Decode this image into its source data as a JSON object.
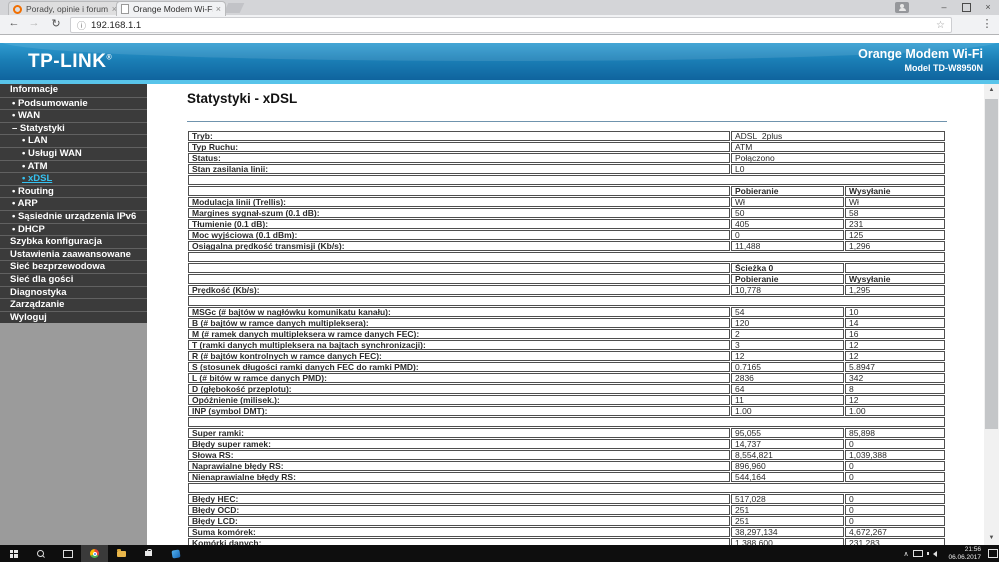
{
  "browser": {
    "tabs": [
      {
        "title": "Porady, opinie i forum -",
        "active": false
      },
      {
        "title": "Orange Modem Wi-Fi",
        "active": true
      }
    ],
    "address": "192.168.1.1",
    "icons": {
      "back": "←",
      "forward": "→",
      "reload": "↻",
      "info": "ⓘ",
      "star": "☆",
      "menu": "⋮",
      "close": "×",
      "minimize": "–",
      "scroll_up": "▲",
      "scroll_down": "▼",
      "tray_chevron": "∧"
    }
  },
  "router": {
    "brand": "TP-LINK",
    "brand_reg": "®",
    "product": "Orange Modem Wi-Fi",
    "model": "Model TD-W8950N"
  },
  "sidebar": {
    "items": [
      {
        "label": "Informacje",
        "kind": "section"
      },
      {
        "label": "Podsumowanie",
        "kind": "link",
        "prefix": "•",
        "indent": 1
      },
      {
        "label": "WAN",
        "kind": "link",
        "prefix": "•",
        "indent": 1
      },
      {
        "label": "Statystyki",
        "kind": "link",
        "prefix": "–",
        "indent": 1
      },
      {
        "label": "LAN",
        "kind": "link",
        "prefix": "•",
        "indent": 2
      },
      {
        "label": "Usługi WAN",
        "kind": "link",
        "prefix": "•",
        "indent": 2
      },
      {
        "label": "ATM",
        "kind": "link",
        "prefix": "•",
        "indent": 2
      },
      {
        "label": "xDSL",
        "kind": "link",
        "prefix": "•",
        "indent": 2,
        "active": true
      },
      {
        "label": "Routing",
        "kind": "link",
        "prefix": "•",
        "indent": 1
      },
      {
        "label": "ARP",
        "kind": "link",
        "prefix": "•",
        "indent": 1
      },
      {
        "label": "Sąsiednie urządzenia IPv6",
        "kind": "link",
        "prefix": "•",
        "indent": 1
      },
      {
        "label": "DHCP",
        "kind": "link",
        "prefix": "•",
        "indent": 1
      },
      {
        "label": "Szybka konfiguracja",
        "kind": "section"
      },
      {
        "label": "Ustawienia zaawansowane",
        "kind": "section"
      },
      {
        "label": "Sieć bezprzewodowa",
        "kind": "section"
      },
      {
        "label": "Sieć dla gości",
        "kind": "section"
      },
      {
        "label": "Diagnostyka",
        "kind": "section"
      },
      {
        "label": "Zarządzanie",
        "kind": "section"
      },
      {
        "label": "Wyloguj",
        "kind": "section"
      }
    ]
  },
  "content": {
    "title": "Statystyki - xDSL"
  },
  "stats_table": {
    "rows": [
      {
        "t": "kv",
        "label": "Tryb:",
        "value": "ADSL_2plus"
      },
      {
        "t": "kv",
        "label": "Typ Ruchu:",
        "value": "ATM"
      },
      {
        "t": "kv",
        "label": "Status:",
        "value": "Połączono"
      },
      {
        "t": "kv",
        "label": "Stan zasilania linii:",
        "value": "L0"
      },
      {
        "t": "gap"
      },
      {
        "t": "head",
        "c1": "Pobieranie",
        "c2": "Wysyłanie"
      },
      {
        "t": "row",
        "label": "Modulacja linii (Trellis):",
        "c1": "Wł",
        "c2": "Wł"
      },
      {
        "t": "row",
        "label": "Margines sygnał-szum (0.1 dB):",
        "c1": "50",
        "c2": "58"
      },
      {
        "t": "row",
        "label": "Tłumienie (0.1 dB):",
        "c1": "405",
        "c2": "231"
      },
      {
        "t": "row",
        "label": "Moc wyjściowa (0.1 dBm):",
        "c1": "0",
        "c2": "125"
      },
      {
        "t": "row",
        "label": "Osiągalna prędkość transmisji (Kb/s):",
        "c1": "11,488",
        "c2": "1,296"
      },
      {
        "t": "gap"
      },
      {
        "t": "head1",
        "c1": "Ścieżka 0"
      },
      {
        "t": "head",
        "c1": "Pobieranie",
        "c2": "Wysyłanie"
      },
      {
        "t": "row",
        "label": "Prędkość (Kb/s):",
        "c1": "10,778",
        "c2": "1,295"
      },
      {
        "t": "gap"
      },
      {
        "t": "row",
        "label": "MSGc (# bajtów w nagłówku komunikatu kanału):",
        "c1": "54",
        "c2": "10"
      },
      {
        "t": "row",
        "label": "B (# bajtów w ramce danych multipleksera):",
        "c1": "120",
        "c2": "14"
      },
      {
        "t": "row",
        "label": "M (# ramek danych multipleksera w ramce danych FEC):",
        "c1": "2",
        "c2": "16"
      },
      {
        "t": "row",
        "label": "T (ramki danych multipleksera na bajtach synchronizacji):",
        "c1": "3",
        "c2": "12"
      },
      {
        "t": "row",
        "label": "R (# bajtów kontrolnych w ramce danych FEC):",
        "c1": "12",
        "c2": "12"
      },
      {
        "t": "row",
        "label": "S (stosunek długości ramki danych FEC do ramki PMD):",
        "c1": "0.7165",
        "c2": "5.8947"
      },
      {
        "t": "row",
        "label": "L (# bitów w ramce danych PMD):",
        "c1": "2836",
        "c2": "342"
      },
      {
        "t": "row",
        "label": "D (głębokość przeplotu):",
        "c1": "64",
        "c2": "8"
      },
      {
        "t": "row",
        "label": "Opóźnienie (milisek.):",
        "c1": "11",
        "c2": "12"
      },
      {
        "t": "row",
        "label": "INP (symbol DMT):",
        "c1": "1.00",
        "c2": "1.00"
      },
      {
        "t": "gap"
      },
      {
        "t": "row",
        "label": "Super ramki:",
        "c1": "95,055",
        "c2": "85,898"
      },
      {
        "t": "row",
        "label": "Błędy super ramek:",
        "c1": "14,737",
        "c2": "0"
      },
      {
        "t": "row",
        "label": "Słowa RS:",
        "c1": "8,554,821",
        "c2": "1,039,388"
      },
      {
        "t": "row",
        "label": "Naprawialne błędy RS:",
        "c1": "896,960",
        "c2": "0"
      },
      {
        "t": "row",
        "label": "Nienaprawialne błędy RS:",
        "c1": "544,164",
        "c2": "0"
      },
      {
        "t": "gap"
      },
      {
        "t": "row",
        "label": "Błędy HEC:",
        "c1": "517,028",
        "c2": "0"
      },
      {
        "t": "row",
        "label": "Błędy OCD:",
        "c1": "251",
        "c2": "0"
      },
      {
        "t": "row",
        "label": "Błędy LCD:",
        "c1": "251",
        "c2": "0"
      },
      {
        "t": "row",
        "label": "Suma komórek:",
        "c1": "38,297,134",
        "c2": "4,672,267"
      },
      {
        "t": "row",
        "label": "Komórki danych:",
        "c1": "1,388,600",
        "c2": "231,283"
      }
    ]
  },
  "taskbar": {
    "time": "21:56",
    "date": "06.06.2017"
  }
}
